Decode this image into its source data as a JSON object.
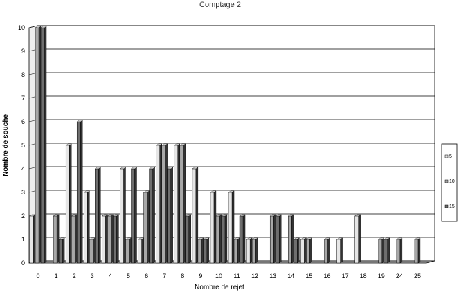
{
  "chart_data": {
    "type": "bar",
    "title": "Comptage 2",
    "xlabel": "Nombre de rejet",
    "ylabel": "Nombre de souche",
    "ylim": [
      0,
      10
    ],
    "yticks": [
      "0",
      "1",
      "2",
      "3",
      "4",
      "5",
      "6",
      "7",
      "8",
      "9",
      "10"
    ],
    "grid": true,
    "legend_position": "right",
    "categories": [
      "0",
      "1",
      "2",
      "3",
      "4",
      "5",
      "6",
      "7",
      "8",
      "9",
      "10",
      "11",
      "12",
      "13",
      "14",
      "15",
      "16",
      "17",
      "18",
      "19",
      "24",
      "25"
    ],
    "series": [
      {
        "name": "5",
        "color": "#e6e6e6",
        "values": [
          2,
          0,
          5,
          3,
          2,
          4,
          1,
          5,
          5,
          4,
          3,
          3,
          1,
          0,
          0,
          1,
          0,
          1,
          2,
          0,
          0,
          0
        ]
      },
      {
        "name": "10",
        "color": "#a8a8a8",
        "values": [
          10,
          2,
          2,
          1,
          2,
          1,
          3,
          5,
          5,
          1,
          2,
          1,
          1,
          2,
          2,
          1,
          1,
          0,
          0,
          1,
          1,
          1
        ]
      },
      {
        "name": "15",
        "color": "#6e6e6e",
        "values": [
          10,
          1,
          6,
          4,
          2,
          4,
          4,
          4,
          2,
          1,
          2,
          2,
          0,
          2,
          1,
          0,
          0,
          0,
          0,
          1,
          0,
          0
        ]
      }
    ]
  }
}
